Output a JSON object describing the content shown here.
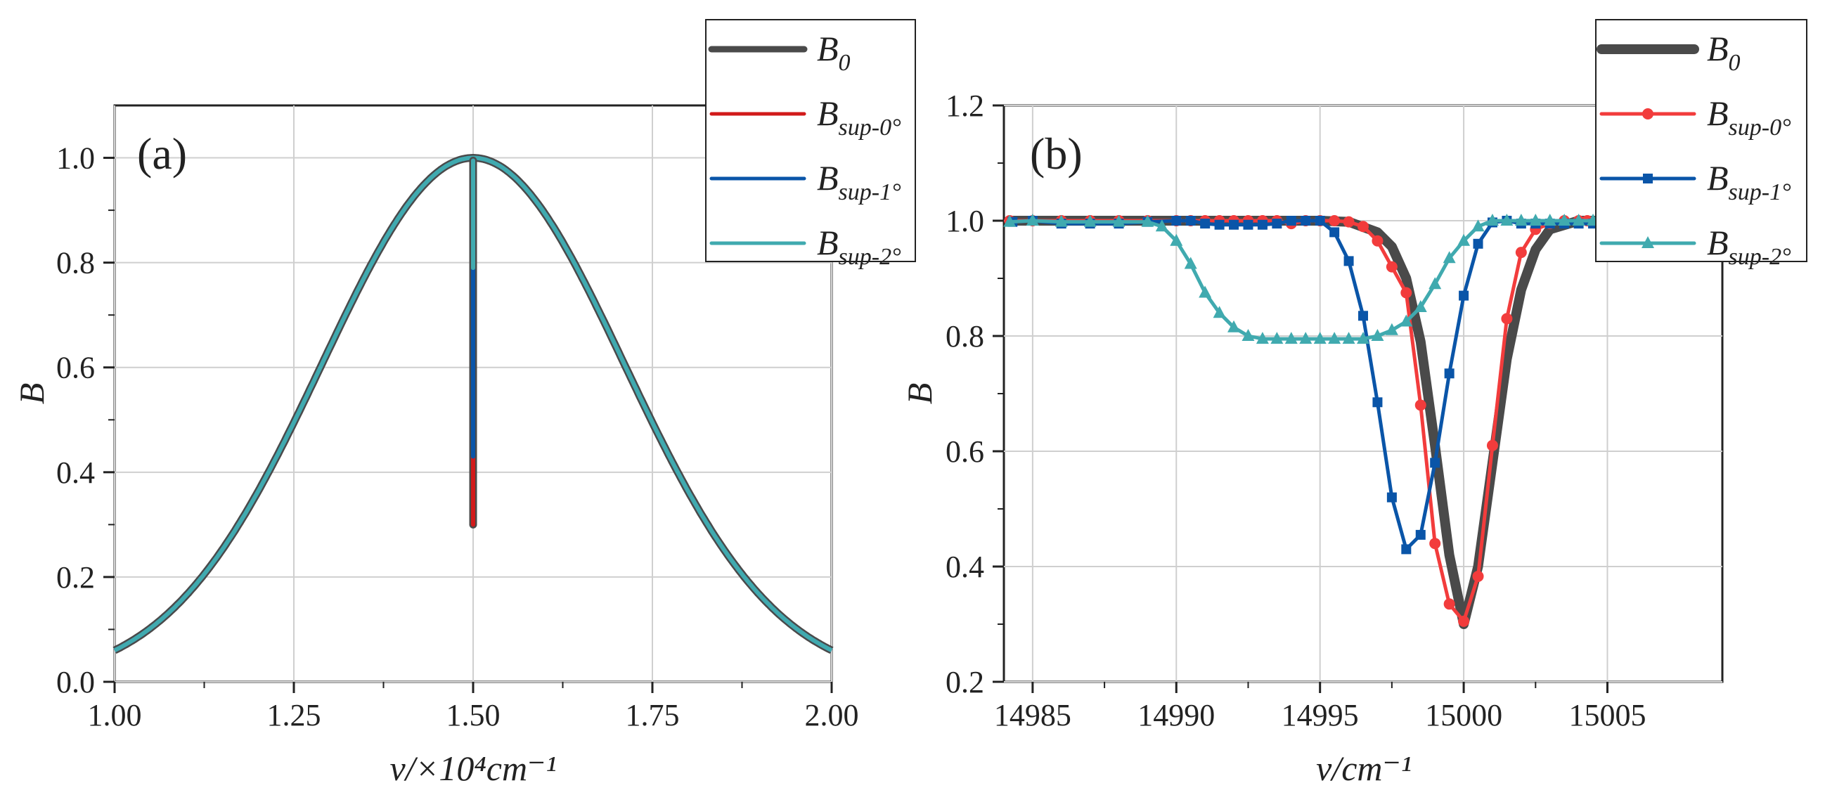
{
  "colors": {
    "B0": "#4a4a4a",
    "sup0": "#d11a1a",
    "sup0_markers": "#f23c3c",
    "sup1": "#0a55a8",
    "sup2": "#40aaaf",
    "grid": "#cfcfcf",
    "axis": "#222222"
  },
  "chart_data": [
    {
      "type": "line",
      "panel_label": "(a)",
      "xlabel": "v/×10⁴cm⁻¹",
      "ylabel": "B",
      "xlim": [
        1.0,
        2.0
      ],
      "ylim": [
        0.0,
        1.1
      ],
      "x_ticks": [
        1.0,
        1.25,
        1.5,
        1.75,
        2.0
      ],
      "x_tick_labels": [
        "1.00",
        "1.25",
        "1.50",
        "1.75",
        "2.00"
      ],
      "y_ticks": [
        0.0,
        0.2,
        0.4,
        0.6,
        0.8,
        1.0
      ],
      "y_tick_labels": [
        "0.0",
        "0.2",
        "0.4",
        "0.6",
        "0.8",
        "1.0"
      ],
      "grid": true,
      "legend_position": "top-right, outside",
      "legend": [
        {
          "base": "B",
          "sub": "0",
          "series": "B0"
        },
        {
          "base": "B",
          "sub": "sup-0°",
          "series": "sup0"
        },
        {
          "base": "B",
          "sub": "sup-1°",
          "series": "sup1"
        },
        {
          "base": "B",
          "sub": "sup-2°",
          "series": "sup2"
        }
      ],
      "series": [
        {
          "name": "B0",
          "curve": "gaussian",
          "center": 1.5,
          "peak": 1.0,
          "edge_value": 0.06,
          "dip_min": 0.3
        },
        {
          "name": "B_sup-0°",
          "curve": "gaussian",
          "center": 1.5,
          "peak": 1.0,
          "edge_value": 0.06,
          "dip_min": 0.3
        },
        {
          "name": "B_sup-1°",
          "curve": "gaussian",
          "center": 1.5,
          "peak": 1.0,
          "edge_value": 0.06,
          "dip_min": 0.43
        },
        {
          "name": "B_sup-2°",
          "curve": "gaussian",
          "center": 1.5,
          "peak": 1.0,
          "edge_value": 0.06,
          "dip_min": 0.79
        }
      ]
    },
    {
      "type": "line",
      "panel_label": "(b)",
      "xlabel": "v/cm⁻¹",
      "ylabel": "B",
      "xlim": [
        14984,
        15009
      ],
      "ylim": [
        0.2,
        1.2
      ],
      "x_ticks": [
        14985,
        14990,
        14995,
        15000,
        15005
      ],
      "x_tick_labels": [
        "14985",
        "14990",
        "14995",
        "15000",
        "15005"
      ],
      "y_ticks": [
        0.2,
        0.4,
        0.6,
        0.8,
        1.0,
        1.2
      ],
      "y_tick_labels": [
        "0.2",
        "0.4",
        "0.6",
        "0.8",
        "1.0",
        "1.2"
      ],
      "grid": true,
      "legend_position": "top-right",
      "legend": [
        {
          "base": "B",
          "sub": "0",
          "series": "B0"
        },
        {
          "base": "B",
          "sub": "sup-0°",
          "series": "sup0"
        },
        {
          "base": "B",
          "sub": "sup-1°",
          "series": "sup1"
        },
        {
          "base": "B",
          "sub": "sup-2°",
          "series": "sup2"
        }
      ],
      "series": [
        {
          "name": "B0",
          "marker": "none",
          "x": [
            14984.2,
            14990,
            14995,
            14996,
            14997,
            14997.5,
            14998,
            14998.5,
            14999,
            14999.5,
            15000,
            15000.5,
            15001,
            15001.5,
            15002,
            15002.5,
            15003,
            15004,
            15005
          ],
          "y": [
            1.0,
            1.0,
            1.0,
            0.998,
            0.98,
            0.955,
            0.9,
            0.79,
            0.61,
            0.42,
            0.3,
            0.4,
            0.58,
            0.76,
            0.88,
            0.95,
            0.985,
            1.0,
            1.0
          ]
        },
        {
          "name": "B_sup-0°",
          "marker": "circle",
          "x": [
            14984.2,
            14985,
            14986,
            14987,
            14988,
            14989,
            14990,
            14990.5,
            14991,
            14991.5,
            14992,
            14992.5,
            14993,
            14993.5,
            14994,
            14994.5,
            14995,
            14995.5,
            14996,
            14996.5,
            14997,
            14997.5,
            14998,
            14998.5,
            14999,
            14999.5,
            15000,
            15000.5,
            15001,
            15001.5,
            15002,
            15002.5,
            15003,
            15003.5,
            15004,
            15004.3
          ],
          "y": [
            1.0,
            1.0,
            1.0,
            1.0,
            1.0,
            1.0,
            1.0,
            1.0,
            1.0,
            1.0,
            1.0,
            1.0,
            1.0,
            1.0,
            0.995,
            1.0,
            1.0,
            1.0,
            0.998,
            0.99,
            0.965,
            0.92,
            0.875,
            0.68,
            0.44,
            0.335,
            0.305,
            0.383,
            0.61,
            0.83,
            0.945,
            0.985,
            0.995,
            1.0,
            1.0,
            1.0
          ]
        },
        {
          "name": "B_sup-1°",
          "marker": "square",
          "x": [
            14984.3,
            14985,
            14986,
            14987,
            14988,
            14989,
            14990,
            14990.5,
            14991,
            14991.5,
            14992,
            14992.5,
            14993,
            14993.5,
            14994,
            14994.5,
            14995,
            14995.5,
            14996,
            14996.5,
            14997,
            14997.5,
            14998,
            14998.5,
            14999,
            14999.5,
            15000,
            15000.5,
            15001,
            15001.5,
            15002,
            15002.5,
            15003,
            15003.5,
            15004,
            15004.5
          ],
          "y": [
            0.998,
            1.0,
            0.995,
            0.995,
            0.995,
            0.998,
            1.0,
            1.0,
            0.995,
            0.993,
            0.993,
            0.993,
            0.993,
            0.995,
            1.0,
            1.0,
            1.0,
            0.98,
            0.93,
            0.835,
            0.685,
            0.52,
            0.43,
            0.455,
            0.58,
            0.735,
            0.87,
            0.96,
            0.997,
            1.0,
            0.995,
            0.995,
            0.995,
            0.995,
            0.995,
            0.995
          ]
        },
        {
          "name": "B_sup-2°",
          "marker": "triangle",
          "x": [
            14984.2,
            14985,
            14986,
            14987,
            14988,
            14989,
            14989.5,
            14990,
            14990.5,
            14991,
            14991.5,
            14992,
            14992.5,
            14993,
            14993.5,
            14994,
            14994.5,
            14995,
            14995.5,
            14996,
            14996.5,
            14997,
            14997.5,
            14998,
            14998.5,
            14999,
            14999.5,
            15000,
            15000.5,
            15001,
            15001.5,
            15002,
            15002.5,
            15003,
            15003.5,
            15004,
            15004.5,
            15005
          ],
          "y": [
            0.998,
            1.0,
            0.998,
            0.998,
            0.998,
            0.998,
            0.99,
            0.965,
            0.925,
            0.875,
            0.84,
            0.815,
            0.8,
            0.795,
            0.795,
            0.795,
            0.795,
            0.795,
            0.795,
            0.795,
            0.795,
            0.8,
            0.81,
            0.825,
            0.85,
            0.89,
            0.935,
            0.965,
            0.99,
            1.0,
            1.0,
            1.0,
            1.0,
            1.0,
            1.0,
            1.0,
            1.0,
            1.0
          ]
        }
      ]
    }
  ]
}
